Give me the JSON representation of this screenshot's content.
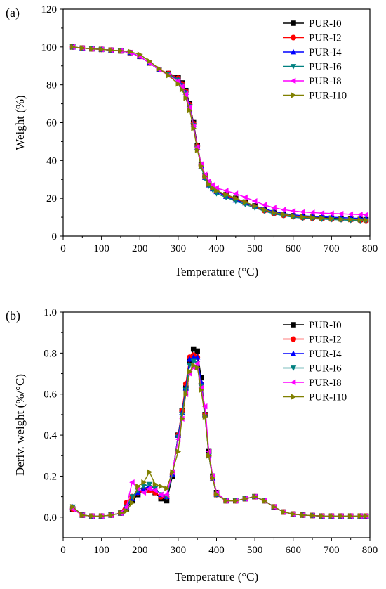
{
  "chart_data": [
    {
      "type": "line",
      "panel_label": "(a)",
      "xlabel": "Temperature (°C)",
      "ylabel": "Weight (%)",
      "xlim": [
        0,
        800
      ],
      "ylim": [
        0,
        120
      ],
      "xticks": [
        0,
        100,
        200,
        300,
        400,
        500,
        600,
        700,
        800
      ],
      "yticks": [
        0,
        20,
        40,
        60,
        80,
        100,
        120
      ],
      "legend_position": "top-right",
      "x": [
        25,
        50,
        75,
        100,
        125,
        150,
        175,
        200,
        225,
        250,
        275,
        300,
        310,
        320,
        330,
        340,
        350,
        360,
        370,
        380,
        390,
        400,
        425,
        450,
        475,
        500,
        525,
        550,
        575,
        600,
        625,
        650,
        675,
        700,
        725,
        750,
        775,
        790
      ],
      "series": [
        {
          "name": "PUR-I0",
          "color": "#000000",
          "marker": "square",
          "values": [
            100,
            99.4,
            99,
            98.7,
            98.3,
            97.9,
            97,
            95,
            91.5,
            88,
            86,
            84,
            81,
            77,
            70,
            60,
            48,
            38,
            32,
            28,
            26,
            24,
            22,
            20,
            18,
            16,
            14,
            12.5,
            11.5,
            10.8,
            10.3,
            10,
            9.7,
            9.5,
            9.2,
            9,
            8.8,
            8.7
          ]
        },
        {
          "name": "PUR-I2",
          "color": "#ff0000",
          "marker": "circle",
          "values": [
            100,
            99.4,
            99,
            98.7,
            98.3,
            97.9,
            97,
            95,
            91.5,
            88,
            86,
            83.5,
            80.5,
            76.5,
            69.5,
            59.5,
            47.5,
            37.5,
            31.5,
            27.5,
            25.5,
            23.5,
            21.5,
            19.5,
            17.5,
            15.5,
            13.5,
            12,
            11,
            10.3,
            9.8,
            9.5,
            9.2,
            9,
            8.8,
            8.6,
            8.4,
            8.3
          ]
        },
        {
          "name": "PUR-I4",
          "color": "#0000ff",
          "marker": "triangle-up",
          "values": [
            100,
            99.4,
            99,
            98.7,
            98.3,
            97.9,
            97,
            95,
            91.5,
            88,
            85.5,
            83,
            80,
            76,
            69,
            59,
            47,
            37,
            31,
            27,
            25,
            23.5,
            21,
            19,
            17.5,
            16,
            14.5,
            13,
            12,
            11.3,
            10.8,
            10.5,
            10.2,
            10,
            9.8,
            9.6,
            9.4,
            9.3
          ]
        },
        {
          "name": "PUR-I6",
          "color": "#008080",
          "marker": "triangle-down",
          "values": [
            100,
            99.4,
            99,
            98.7,
            98.3,
            97.9,
            97,
            95,
            91.5,
            88,
            85.5,
            82.5,
            79.5,
            75.5,
            68.5,
            58.5,
            46.5,
            36.5,
            30.5,
            26.5,
            24.5,
            22.5,
            20.5,
            18.5,
            16.8,
            15,
            13.2,
            11.8,
            10.8,
            10,
            9.5,
            9.2,
            9,
            8.8,
            8.6,
            8.4,
            8.2,
            8.1
          ]
        },
        {
          "name": "PUR-I8",
          "color": "#ff00ff",
          "marker": "triangle-left",
          "values": [
            100,
            99.4,
            99,
            98.7,
            98.3,
            97.9,
            97,
            95,
            91.5,
            88,
            85,
            82,
            79,
            75,
            68,
            58,
            47,
            38,
            32.5,
            29,
            27,
            25.5,
            24,
            22.5,
            20.5,
            18.5,
            16.5,
            15,
            14,
            13.3,
            12.8,
            12.5,
            12.2,
            12,
            11.8,
            11.6,
            11.4,
            11.3
          ]
        },
        {
          "name": "PUR-I10",
          "color": "#808000",
          "marker": "triangle-right",
          "values": [
            100,
            99.4,
            99,
            98.7,
            98.3,
            98,
            97.5,
            96,
            92.5,
            88.5,
            85,
            80.5,
            77.5,
            73,
            66.5,
            57,
            45.5,
            37,
            31.5,
            27.5,
            25.5,
            24,
            22,
            20,
            18,
            16,
            14,
            12.5,
            11.5,
            10.7,
            10.2,
            9.8,
            9.5,
            9.2,
            9,
            8.8,
            8.6,
            8.5
          ]
        }
      ]
    },
    {
      "type": "line",
      "panel_label": "(b)",
      "xlabel": "Temperature (°C)",
      "ylabel": "Deriv. weight (%/°C)",
      "xlim": [
        0,
        800
      ],
      "ylim": [
        -0.1,
        1.0
      ],
      "xticks": [
        0,
        100,
        200,
        300,
        400,
        500,
        600,
        700,
        800
      ],
      "yticks": [
        0.0,
        0.2,
        0.4,
        0.6,
        0.8,
        1.0
      ],
      "legend_position": "top-right",
      "x": [
        25,
        50,
        75,
        100,
        125,
        150,
        165,
        180,
        195,
        210,
        225,
        240,
        255,
        270,
        285,
        300,
        310,
        320,
        330,
        340,
        350,
        360,
        370,
        380,
        390,
        400,
        425,
        450,
        475,
        500,
        525,
        550,
        575,
        600,
        625,
        650,
        675,
        700,
        725,
        750,
        775,
        790
      ],
      "series": [
        {
          "name": "PUR-I0",
          "color": "#000000",
          "marker": "square",
          "values": [
            0.04,
            0.01,
            0.005,
            0.005,
            0.01,
            0.02,
            0.04,
            0.08,
            0.11,
            0.13,
            0.14,
            0.12,
            0.09,
            0.08,
            0.2,
            0.4,
            0.52,
            0.63,
            0.76,
            0.82,
            0.81,
            0.68,
            0.5,
            0.32,
            0.2,
            0.12,
            0.08,
            0.08,
            0.09,
            0.1,
            0.08,
            0.05,
            0.025,
            0.015,
            0.01,
            0.008,
            0.005,
            0.005,
            0.005,
            0.005,
            0.005,
            0.005
          ]
        },
        {
          "name": "PUR-I2",
          "color": "#ff0000",
          "marker": "circle",
          "values": [
            0.04,
            0.01,
            0.005,
            0.005,
            0.01,
            0.02,
            0.07,
            0.1,
            0.12,
            0.13,
            0.13,
            0.12,
            0.1,
            0.1,
            0.21,
            0.4,
            0.52,
            0.65,
            0.78,
            0.79,
            0.78,
            0.65,
            0.5,
            0.3,
            0.19,
            0.11,
            0.08,
            0.08,
            0.09,
            0.1,
            0.08,
            0.05,
            0.025,
            0.015,
            0.01,
            0.008,
            0.005,
            0.005,
            0.005,
            0.005,
            0.005,
            0.005
          ]
        },
        {
          "name": "PUR-I4",
          "color": "#0000ff",
          "marker": "triangle-up",
          "values": [
            0.05,
            0.01,
            0.005,
            0.005,
            0.01,
            0.02,
            0.05,
            0.09,
            0.12,
            0.14,
            0.15,
            0.14,
            0.11,
            0.1,
            0.21,
            0.4,
            0.51,
            0.63,
            0.77,
            0.78,
            0.78,
            0.66,
            0.5,
            0.3,
            0.19,
            0.11,
            0.08,
            0.08,
            0.09,
            0.1,
            0.08,
            0.05,
            0.025,
            0.015,
            0.01,
            0.008,
            0.005,
            0.005,
            0.005,
            0.005,
            0.005,
            0.005
          ]
        },
        {
          "name": "PUR-I6",
          "color": "#008080",
          "marker": "triangle-down",
          "values": [
            0.05,
            0.01,
            0.005,
            0.005,
            0.01,
            0.02,
            0.05,
            0.1,
            0.13,
            0.15,
            0.16,
            0.14,
            0.11,
            0.1,
            0.21,
            0.39,
            0.5,
            0.62,
            0.74,
            0.76,
            0.75,
            0.64,
            0.49,
            0.3,
            0.19,
            0.11,
            0.08,
            0.08,
            0.09,
            0.1,
            0.08,
            0.05,
            0.025,
            0.015,
            0.01,
            0.008,
            0.005,
            0.005,
            0.005,
            0.005,
            0.005,
            0.005
          ]
        },
        {
          "name": "PUR-I8",
          "color": "#ff00ff",
          "marker": "triangle-left",
          "values": [
            0.04,
            0.01,
            0.005,
            0.005,
            0.01,
            0.02,
            0.05,
            0.17,
            0.14,
            0.12,
            0.14,
            0.13,
            0.11,
            0.11,
            0.22,
            0.38,
            0.48,
            0.6,
            0.7,
            0.73,
            0.75,
            0.63,
            0.54,
            0.32,
            0.2,
            0.12,
            0.08,
            0.08,
            0.09,
            0.1,
            0.08,
            0.05,
            0.025,
            0.015,
            0.01,
            0.008,
            0.005,
            0.005,
            0.005,
            0.005,
            0.005,
            0.005
          ]
        },
        {
          "name": "PUR-I10",
          "color": "#808000",
          "marker": "triangle-right",
          "values": [
            0.05,
            0.01,
            0.005,
            0.005,
            0.01,
            0.02,
            0.03,
            0.07,
            0.15,
            0.17,
            0.22,
            0.16,
            0.15,
            0.14,
            0.22,
            0.32,
            0.48,
            0.6,
            0.71,
            0.74,
            0.73,
            0.62,
            0.49,
            0.3,
            0.19,
            0.11,
            0.08,
            0.08,
            0.09,
            0.1,
            0.08,
            0.05,
            0.025,
            0.015,
            0.01,
            0.008,
            0.005,
            0.005,
            0.005,
            0.005,
            0.005,
            0.005
          ]
        }
      ]
    }
  ]
}
